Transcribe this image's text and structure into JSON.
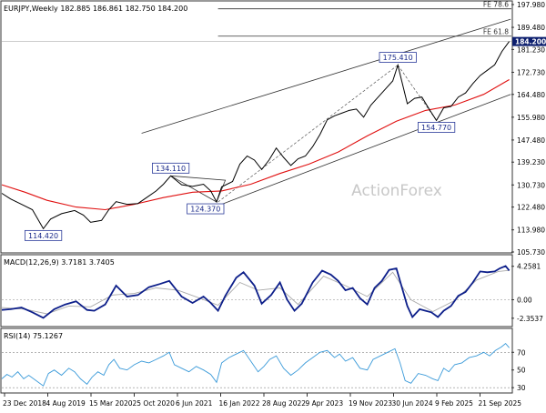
{
  "chart_data": [
    {
      "type": "line",
      "title": "EURJPY,Weekly  182.885 186.861 182.750 184.200",
      "watermark": "ActionForex",
      "x_labels": [
        "23 Dec 2018",
        "4 Aug 2019",
        "15 Mar 2020",
        "25 Oct 2020",
        "6 Jun 2021",
        "16 Jan 2022",
        "28 Aug 2022",
        "9 Apr 2023",
        "19 Nov 2023",
        "30 Jun 2024",
        "9 Feb 2025",
        "21 Sep 2025"
      ],
      "ylim": [
        105.73,
        199.0
      ],
      "y_ticks": [
        {
          "v": 197.98,
          "label": "197.980"
        },
        {
          "v": 189.48,
          "label": "189.480"
        },
        {
          "v": 181.23,
          "label": "181.230"
        },
        {
          "v": 172.73,
          "label": "172.730"
        },
        {
          "v": 164.48,
          "label": "164.480"
        },
        {
          "v": 155.98,
          "label": "155.980"
        },
        {
          "v": 147.48,
          "label": "147.480"
        },
        {
          "v": 139.23,
          "label": "139.230"
        },
        {
          "v": 130.73,
          "label": "130.730"
        },
        {
          "v": 122.48,
          "label": "122.480"
        },
        {
          "v": 113.98,
          "label": "113.980"
        },
        {
          "v": 105.73,
          "label": "105.730"
        }
      ],
      "last_price": {
        "value": 184.2,
        "label": "184.200",
        "color": "#0d1f6e"
      },
      "fib_levels": [
        {
          "name": "FE 78.6",
          "value": 196.4,
          "x_start": 2021.95
        },
        {
          "name": "FE 61.8",
          "value": 186.2,
          "x_start": 2021.95
        }
      ],
      "annotations": [
        {
          "text": "114.420",
          "x": 2019.55,
          "y": 114.42
        },
        {
          "text": "134.110",
          "x": 2021.3,
          "y": 134.11
        },
        {
          "text": "124.370",
          "x": 2021.93,
          "y": 124.37
        },
        {
          "text": "175.410",
          "x": 2024.42,
          "y": 175.41
        },
        {
          "text": "154.770",
          "x": 2024.95,
          "y": 154.77
        }
      ],
      "channel": {
        "upper": [
          [
            2020.9,
            150.0
          ],
          [
            2025.97,
            192.5
          ]
        ],
        "lower": [
          [
            2021.95,
            123.0
          ],
          [
            2025.97,
            164.5
          ]
        ]
      },
      "dashed": [
        [
          [
            2021.95,
            124.37
          ],
          [
            2024.42,
            175.41
          ]
        ],
        [
          [
            2024.42,
            175.41
          ],
          [
            2024.95,
            154.77
          ]
        ]
      ],
      "triangle": [
        [
          2021.3,
          134.11
        ],
        [
          2022.05,
          132.5
        ],
        [
          2021.93,
          124.37
        ]
      ],
      "price_series": {
        "name": "EURJPY",
        "color": "#000000",
        "points": [
          [
            2018.98,
            127.6
          ],
          [
            2019.1,
            125.5
          ],
          [
            2019.25,
            123.5
          ],
          [
            2019.4,
            121.5
          ],
          [
            2019.55,
            114.42
          ],
          [
            2019.65,
            118.0
          ],
          [
            2019.8,
            120.0
          ],
          [
            2019.98,
            121.2
          ],
          [
            2020.1,
            119.5
          ],
          [
            2020.2,
            116.8
          ],
          [
            2020.35,
            117.5
          ],
          [
            2020.45,
            121.5
          ],
          [
            2020.55,
            124.5
          ],
          [
            2020.7,
            123.5
          ],
          [
            2020.85,
            123.8
          ],
          [
            2020.98,
            126.2
          ],
          [
            2021.1,
            128.5
          ],
          [
            2021.2,
            131.0
          ],
          [
            2021.3,
            134.11
          ],
          [
            2021.45,
            130.8
          ],
          [
            2021.6,
            130.2
          ],
          [
            2021.75,
            131.0
          ],
          [
            2021.85,
            128.5
          ],
          [
            2021.93,
            124.37
          ],
          [
            2022.0,
            130.0
          ],
          [
            2022.15,
            132.0
          ],
          [
            2022.25,
            138.5
          ],
          [
            2022.35,
            141.5
          ],
          [
            2022.45,
            140.0
          ],
          [
            2022.55,
            136.5
          ],
          [
            2022.65,
            140.0
          ],
          [
            2022.75,
            144.5
          ],
          [
            2022.85,
            141.0
          ],
          [
            2022.95,
            138.0
          ],
          [
            2023.05,
            140.5
          ],
          [
            2023.15,
            141.5
          ],
          [
            2023.25,
            145.0
          ],
          [
            2023.35,
            149.5
          ],
          [
            2023.45,
            155.0
          ],
          [
            2023.55,
            156.5
          ],
          [
            2023.65,
            157.5
          ],
          [
            2023.75,
            158.5
          ],
          [
            2023.85,
            159.0
          ],
          [
            2023.95,
            156.0
          ],
          [
            2024.05,
            160.5
          ],
          [
            2024.15,
            163.5
          ],
          [
            2024.25,
            166.5
          ],
          [
            2024.35,
            169.5
          ],
          [
            2024.42,
            175.41
          ],
          [
            2024.55,
            161.0
          ],
          [
            2024.65,
            163.0
          ],
          [
            2024.75,
            163.5
          ],
          [
            2024.85,
            159.0
          ],
          [
            2024.95,
            154.77
          ],
          [
            2025.05,
            159.5
          ],
          [
            2025.15,
            160.0
          ],
          [
            2025.25,
            163.5
          ],
          [
            2025.35,
            165.0
          ],
          [
            2025.45,
            168.5
          ],
          [
            2025.55,
            171.5
          ],
          [
            2025.65,
            173.5
          ],
          [
            2025.75,
            175.5
          ],
          [
            2025.85,
            180.5
          ],
          [
            2025.95,
            184.2
          ]
        ]
      },
      "ma_series": {
        "name": "MA",
        "color": "#e01010",
        "points": [
          [
            2018.98,
            130.8
          ],
          [
            2019.3,
            128.0
          ],
          [
            2019.6,
            125.0
          ],
          [
            2020.0,
            122.5
          ],
          [
            2020.4,
            121.5
          ],
          [
            2020.8,
            123.5
          ],
          [
            2021.2,
            126.0
          ],
          [
            2021.6,
            128.0
          ],
          [
            2022.0,
            128.5
          ],
          [
            2022.4,
            131.0
          ],
          [
            2022.8,
            135.0
          ],
          [
            2023.2,
            138.5
          ],
          [
            2023.6,
            143.0
          ],
          [
            2024.0,
            149.0
          ],
          [
            2024.4,
            154.5
          ],
          [
            2024.8,
            158.5
          ],
          [
            2025.2,
            160.5
          ],
          [
            2025.6,
            164.5
          ],
          [
            2025.95,
            170.0
          ]
        ]
      }
    },
    {
      "type": "line",
      "title": "MACD(12,26,9) 3.7181 3.7405",
      "ylim": [
        -3.3,
        5.5
      ],
      "y_ticks": [
        {
          "v": 4.2581,
          "label": "4.2581"
        },
        {
          "v": 0.0,
          "label": "0.00"
        },
        {
          "v": -2.3537,
          "label": "-2.3537"
        }
      ],
      "macd_series": {
        "name": "MACD",
        "color": "#0d1f8a",
        "points": [
          [
            2018.98,
            -1.3
          ],
          [
            2019.1,
            -1.2
          ],
          [
            2019.25,
            -1.0
          ],
          [
            2019.4,
            -1.6
          ],
          [
            2019.55,
            -2.3
          ],
          [
            2019.7,
            -1.2
          ],
          [
            2019.85,
            -0.6
          ],
          [
            2020.0,
            -0.2
          ],
          [
            2020.15,
            -1.3
          ],
          [
            2020.25,
            -1.4
          ],
          [
            2020.4,
            -0.6
          ],
          [
            2020.55,
            1.8
          ],
          [
            2020.7,
            0.4
          ],
          [
            2020.85,
            0.6
          ],
          [
            2021.0,
            1.6
          ],
          [
            2021.15,
            2.0
          ],
          [
            2021.28,
            2.4
          ],
          [
            2021.45,
            0.4
          ],
          [
            2021.6,
            -0.4
          ],
          [
            2021.75,
            0.4
          ],
          [
            2021.85,
            -0.4
          ],
          [
            2021.95,
            -1.4
          ],
          [
            2022.05,
            0.5
          ],
          [
            2022.2,
            2.8
          ],
          [
            2022.3,
            3.5
          ],
          [
            2022.45,
            1.8
          ],
          [
            2022.55,
            -0.5
          ],
          [
            2022.68,
            0.6
          ],
          [
            2022.8,
            2.2
          ],
          [
            2022.9,
            0.0
          ],
          [
            2023.0,
            -1.4
          ],
          [
            2023.1,
            -0.5
          ],
          [
            2023.25,
            2.2
          ],
          [
            2023.38,
            3.7
          ],
          [
            2023.5,
            3.2
          ],
          [
            2023.6,
            2.4
          ],
          [
            2023.7,
            1.2
          ],
          [
            2023.8,
            1.5
          ],
          [
            2023.9,
            0.2
          ],
          [
            2024.0,
            -0.6
          ],
          [
            2024.1,
            1.5
          ],
          [
            2024.2,
            2.4
          ],
          [
            2024.3,
            3.8
          ],
          [
            2024.4,
            4.0
          ],
          [
            2024.55,
            -0.8
          ],
          [
            2024.62,
            -2.2
          ],
          [
            2024.72,
            -1.2
          ],
          [
            2024.8,
            -1.4
          ],
          [
            2024.88,
            -1.6
          ],
          [
            2024.97,
            -2.2
          ],
          [
            2025.05,
            -1.4
          ],
          [
            2025.15,
            -0.8
          ],
          [
            2025.25,
            0.5
          ],
          [
            2025.35,
            1.0
          ],
          [
            2025.45,
            2.2
          ],
          [
            2025.55,
            3.6
          ],
          [
            2025.65,
            3.5
          ],
          [
            2025.75,
            3.6
          ],
          [
            2025.82,
            4.0
          ],
          [
            2025.9,
            4.3
          ],
          [
            2025.95,
            3.72
          ]
        ]
      },
      "signal_series": {
        "name": "Signal",
        "color": "#aaaaaa",
        "points": [
          [
            2018.98,
            -1.0
          ],
          [
            2019.3,
            -1.2
          ],
          [
            2019.6,
            -1.8
          ],
          [
            2019.9,
            -0.8
          ],
          [
            2020.2,
            -0.9
          ],
          [
            2020.5,
            0.6
          ],
          [
            2020.8,
            0.8
          ],
          [
            2021.1,
            1.5
          ],
          [
            2021.4,
            1.2
          ],
          [
            2021.7,
            0.2
          ],
          [
            2021.95,
            -0.7
          ],
          [
            2022.25,
            2.2
          ],
          [
            2022.5,
            1.2
          ],
          [
            2022.8,
            1.5
          ],
          [
            2023.05,
            -0.6
          ],
          [
            2023.4,
            3.0
          ],
          [
            2023.7,
            1.8
          ],
          [
            2024.0,
            0.4
          ],
          [
            2024.35,
            3.5
          ],
          [
            2024.6,
            0.0
          ],
          [
            2024.9,
            -1.5
          ],
          [
            2025.2,
            -0.1
          ],
          [
            2025.5,
            2.5
          ],
          [
            2025.8,
            3.6
          ],
          [
            2025.95,
            3.74
          ]
        ]
      }
    },
    {
      "type": "line",
      "title": "RSI(14) 75.1267",
      "ylim": [
        25,
        95
      ],
      "y_ticks": [
        {
          "v": 70,
          "label": "70"
        },
        {
          "v": 50,
          "label": "50"
        },
        {
          "v": 30,
          "label": "30"
        }
      ],
      "rsi_series": {
        "name": "RSI",
        "color": "#3a9ad9",
        "points": [
          [
            2018.98,
            40
          ],
          [
            2019.05,
            45
          ],
          [
            2019.12,
            42
          ],
          [
            2019.2,
            48
          ],
          [
            2019.28,
            40
          ],
          [
            2019.35,
            44
          ],
          [
            2019.45,
            38
          ],
          [
            2019.55,
            32
          ],
          [
            2019.62,
            46
          ],
          [
            2019.7,
            50
          ],
          [
            2019.8,
            44
          ],
          [
            2019.9,
            52
          ],
          [
            2019.98,
            48
          ],
          [
            2020.06,
            40
          ],
          [
            2020.15,
            34
          ],
          [
            2020.22,
            42
          ],
          [
            2020.3,
            48
          ],
          [
            2020.38,
            44
          ],
          [
            2020.45,
            56
          ],
          [
            2020.52,
            62
          ],
          [
            2020.6,
            52
          ],
          [
            2020.7,
            50
          ],
          [
            2020.8,
            56
          ],
          [
            2020.9,
            60
          ],
          [
            2021.0,
            58
          ],
          [
            2021.1,
            62
          ],
          [
            2021.2,
            66
          ],
          [
            2021.28,
            70
          ],
          [
            2021.35,
            56
          ],
          [
            2021.45,
            52
          ],
          [
            2021.55,
            48
          ],
          [
            2021.65,
            54
          ],
          [
            2021.75,
            50
          ],
          [
            2021.85,
            45
          ],
          [
            2021.93,
            36
          ],
          [
            2022.0,
            58
          ],
          [
            2022.1,
            64
          ],
          [
            2022.2,
            68
          ],
          [
            2022.3,
            72
          ],
          [
            2022.4,
            60
          ],
          [
            2022.5,
            48
          ],
          [
            2022.58,
            54
          ],
          [
            2022.66,
            62
          ],
          [
            2022.75,
            66
          ],
          [
            2022.85,
            52
          ],
          [
            2022.95,
            44
          ],
          [
            2023.05,
            50
          ],
          [
            2023.15,
            58
          ],
          [
            2023.25,
            64
          ],
          [
            2023.35,
            70
          ],
          [
            2023.45,
            72
          ],
          [
            2023.55,
            64
          ],
          [
            2023.62,
            68
          ],
          [
            2023.7,
            60
          ],
          [
            2023.8,
            64
          ],
          [
            2023.9,
            52
          ],
          [
            2024.0,
            50
          ],
          [
            2024.08,
            62
          ],
          [
            2024.18,
            66
          ],
          [
            2024.28,
            70
          ],
          [
            2024.38,
            74
          ],
          [
            2024.45,
            58
          ],
          [
            2024.52,
            38
          ],
          [
            2024.6,
            35
          ],
          [
            2024.7,
            46
          ],
          [
            2024.8,
            44
          ],
          [
            2024.9,
            40
          ],
          [
            2024.97,
            38
          ],
          [
            2025.05,
            52
          ],
          [
            2025.12,
            48
          ],
          [
            2025.2,
            56
          ],
          [
            2025.3,
            58
          ],
          [
            2025.4,
            64
          ],
          [
            2025.5,
            66
          ],
          [
            2025.6,
            70
          ],
          [
            2025.68,
            66
          ],
          [
            2025.76,
            72
          ],
          [
            2025.84,
            76
          ],
          [
            2025.9,
            80
          ],
          [
            2025.95,
            75.13
          ]
        ]
      }
    }
  ]
}
